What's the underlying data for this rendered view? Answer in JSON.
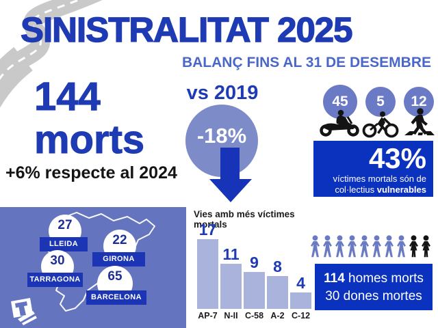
{
  "header": {
    "title": "SINISTRALITAT 2025",
    "subtitle": "BALANÇ FINS AL 31 DE DESEMBRE"
  },
  "deaths": {
    "number": "144",
    "word": "morts",
    "comparison": "+6% respecte al 2024"
  },
  "vs2019": {
    "label": "vs 2019",
    "change": "-18%"
  },
  "vulnerable": {
    "groups": [
      {
        "count": "45",
        "icon": "motorcyclist-icon"
      },
      {
        "count": "5",
        "icon": "cyclist-icon"
      },
      {
        "count": "12",
        "icon": "pedestrian-icon"
      }
    ],
    "percent": "43%",
    "line1": "víctimes mortals són de",
    "line2_prefix": "col·lectius ",
    "line2_bold": "vulnerables"
  },
  "map": {
    "region": "Catalunya",
    "provinces": [
      {
        "name": "LLEIDA",
        "value": "27"
      },
      {
        "name": "GIRONA",
        "value": "22"
      },
      {
        "name": "TARRAGONA",
        "value": "30"
      },
      {
        "name": "BARCELONA",
        "value": "65"
      }
    ]
  },
  "chart_data": {
    "type": "bar",
    "title": "Vies amb més víctimes mortals",
    "categories": [
      "AP-7",
      "N-II",
      "C-58",
      "A-2",
      "C-12"
    ],
    "values": [
      17,
      11,
      9,
      8,
      4
    ],
    "xlabel": "",
    "ylabel": "",
    "ylim": [
      0,
      17
    ],
    "grid": false,
    "legend": false,
    "bar_color": "#A9B3DC",
    "value_label_color": "#1F3BB3"
  },
  "gender": {
    "male_icons": 8,
    "female_icons": 2,
    "line1_bold": "114",
    "line1_rest": " homes morts",
    "line2": "30 dones mortes"
  },
  "colors": {
    "title_blue": "#1F3BB3",
    "subtitle_blue": "#4A67C8",
    "royal_box": "#0B32BE",
    "label_blue": "#1C35B4",
    "arrow_blue": "#1733B7",
    "panel_blue": "#6474BE",
    "circle_blue": "#7D8BC9",
    "bar_fill": "#A9B3DC",
    "icon_male": "#6B7AC5",
    "road_gray": "#C9C9C9"
  }
}
